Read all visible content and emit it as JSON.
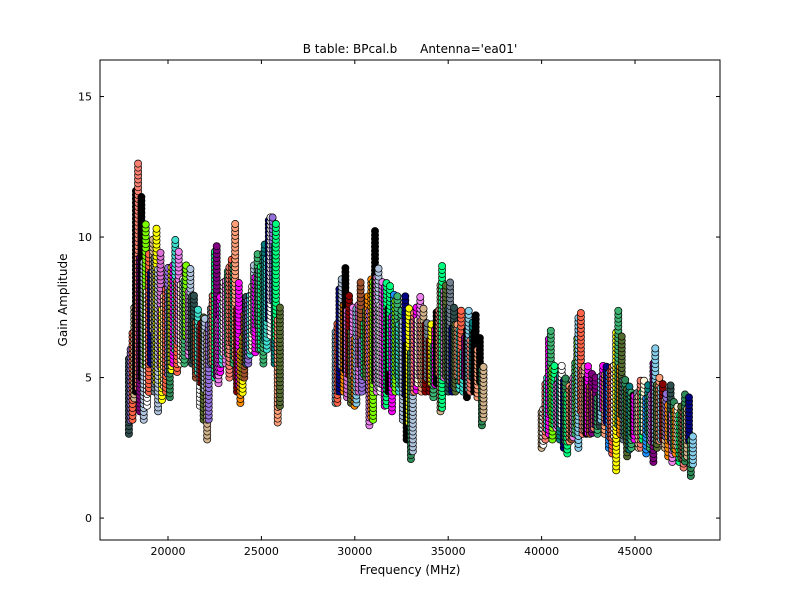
{
  "chart_data": {
    "type": "scatter",
    "title": "B table: BPcal.b      Antenna='ea01'",
    "xlabel": "Frequency (MHz)",
    "ylabel": "Gain Amplitude",
    "xlim": [
      16360,
      49550
    ],
    "ylim": [
      -0.78,
      16.3
    ],
    "xticks": [
      20000,
      25000,
      30000,
      35000,
      40000,
      45000
    ],
    "yticks": [
      0,
      5,
      10,
      15
    ],
    "grid": false,
    "columns_note": "each entry: [frequency MHz, min amplitude, max amplitude]",
    "columns": [
      [
        17900,
        3.0,
        6.0
      ],
      [
        18100,
        3.5,
        7.5
      ],
      [
        18300,
        4.5,
        12.7
      ],
      [
        18500,
        3.8,
        11.5
      ],
      [
        18700,
        3.5,
        10.5
      ],
      [
        18900,
        4.0,
        9.5
      ],
      [
        19100,
        5.5,
        10.0
      ],
      [
        19300,
        4.5,
        10.3
      ],
      [
        19500,
        3.8,
        9.5
      ],
      [
        19700,
        4.2,
        8.0
      ],
      [
        19900,
        4.5,
        9.0
      ],
      [
        20100,
        4.3,
        9.0
      ],
      [
        20300,
        5.5,
        10.0
      ],
      [
        20500,
        5.2,
        9.5
      ],
      [
        20700,
        5.5,
        8.5
      ],
      [
        20900,
        5.5,
        9.0
      ],
      [
        21100,
        5.8,
        9.0
      ],
      [
        21300,
        5.5,
        8.0
      ],
      [
        21500,
        5.0,
        7.5
      ],
      [
        21700,
        4.0,
        7.0
      ],
      [
        21900,
        3.5,
        7.2
      ],
      [
        22100,
        2.8,
        7.0
      ],
      [
        22300,
        5.5,
        8.0
      ],
      [
        22500,
        5.0,
        9.8
      ],
      [
        22700,
        4.8,
        8.0
      ],
      [
        22900,
        5.5,
        8.5
      ],
      [
        23100,
        5.5,
        8.8
      ],
      [
        23300,
        5.0,
        9.2
      ],
      [
        23500,
        5.5,
        10.5
      ],
      [
        23700,
        4.5,
        8.5
      ],
      [
        23900,
        4.1,
        6.5
      ],
      [
        24100,
        5.0,
        8.0
      ],
      [
        24300,
        5.5,
        8.0
      ],
      [
        24500,
        6.0,
        9.0
      ],
      [
        24700,
        5.9,
        9.5
      ],
      [
        24900,
        6.0,
        9.0
      ],
      [
        25100,
        5.5,
        9.8
      ],
      [
        25300,
        6.0,
        10.7
      ],
      [
        25500,
        6.5,
        10.8
      ],
      [
        25700,
        5.5,
        10.5
      ],
      [
        25900,
        3.4,
        7.5
      ],
      [
        29000,
        4.1,
        7.0
      ],
      [
        29200,
        4.5,
        8.5
      ],
      [
        29400,
        4.5,
        8.9
      ],
      [
        29600,
        4.3,
        8.0
      ],
      [
        29800,
        4.1,
        7.5
      ],
      [
        30000,
        4.0,
        7.5
      ],
      [
        30200,
        4.5,
        8.5
      ],
      [
        30400,
        4.5,
        7.0
      ],
      [
        30600,
        5.0,
        8.0
      ],
      [
        30800,
        3.3,
        8.5
      ],
      [
        31000,
        3.5,
        10.3
      ],
      [
        31200,
        4.5,
        9.0
      ],
      [
        31400,
        4.5,
        8.5
      ],
      [
        31600,
        4.0,
        8.5
      ],
      [
        31800,
        4.5,
        8.3
      ],
      [
        32000,
        3.8,
        8.0
      ],
      [
        32200,
        4.5,
        7.9
      ],
      [
        32400,
        4.5,
        7.5
      ],
      [
        32600,
        3.5,
        8.0
      ],
      [
        32800,
        2.8,
        7.5
      ],
      [
        33000,
        2.1,
        7.0
      ],
      [
        33200,
        4.5,
        7.5
      ],
      [
        33400,
        4.8,
        8.0
      ],
      [
        33600,
        4.5,
        7.5
      ],
      [
        33800,
        4.5,
        7.0
      ],
      [
        34000,
        4.5,
        7.0
      ],
      [
        34200,
        4.3,
        6.8
      ],
      [
        34400,
        4.8,
        7.5
      ],
      [
        34600,
        3.8,
        9.1
      ],
      [
        34800,
        5.0,
        8.3
      ],
      [
        35000,
        4.5,
        8.5
      ],
      [
        35200,
        4.5,
        7.5
      ],
      [
        35400,
        4.5,
        7.0
      ],
      [
        35600,
        4.6,
        7.5
      ],
      [
        35800,
        4.5,
        6.5
      ],
      [
        36000,
        4.3,
        7.5
      ],
      [
        36200,
        4.5,
        7.0
      ],
      [
        36400,
        4.5,
        7.3
      ],
      [
        36600,
        4.3,
        6.5
      ],
      [
        36800,
        3.3,
        5.5
      ],
      [
        40000,
        2.5,
        4.0
      ],
      [
        40200,
        2.8,
        5.0
      ],
      [
        40400,
        3.0,
        6.8
      ],
      [
        40600,
        2.8,
        5.5
      ],
      [
        40800,
        3.2,
        5.0
      ],
      [
        41000,
        2.8,
        5.5
      ],
      [
        41200,
        2.5,
        5.0
      ],
      [
        41400,
        2.3,
        4.8
      ],
      [
        41600,
        2.8,
        5.0
      ],
      [
        41800,
        3.0,
        6.5
      ],
      [
        42000,
        2.5,
        7.3
      ],
      [
        42200,
        3.0,
        5.5
      ],
      [
        42400,
        3.0,
        5.5
      ],
      [
        42600,
        3.0,
        5.2
      ],
      [
        42800,
        3.2,
        5.0
      ],
      [
        43000,
        3.0,
        4.5
      ],
      [
        43200,
        3.5,
        5.5
      ],
      [
        43400,
        3.0,
        5.5
      ],
      [
        43600,
        2.5,
        5.3
      ],
      [
        43800,
        2.3,
        5.5
      ],
      [
        44000,
        1.7,
        7.4
      ],
      [
        44200,
        3.0,
        6.5
      ],
      [
        44400,
        2.8,
        5.0
      ],
      [
        44600,
        2.2,
        4.8
      ],
      [
        44800,
        2.5,
        4.5
      ],
      [
        45000,
        2.8,
        4.5
      ],
      [
        45200,
        2.5,
        5.0
      ],
      [
        45400,
        2.8,
        5.0
      ],
      [
        45600,
        2.3,
        4.8
      ],
      [
        45800,
        2.5,
        4.5
      ],
      [
        46000,
        2.0,
        6.1
      ],
      [
        46200,
        2.5,
        5.0
      ],
      [
        46400,
        2.8,
        4.8
      ],
      [
        46600,
        2.5,
        4.5
      ],
      [
        46800,
        2.2,
        4.8
      ],
      [
        47000,
        2.0,
        4.2
      ],
      [
        47200,
        2.3,
        4.0
      ],
      [
        47400,
        2.0,
        4.0
      ],
      [
        47600,
        1.8,
        4.4
      ],
      [
        47800,
        2.2,
        4.3
      ],
      [
        48000,
        1.5,
        3.0
      ]
    ],
    "palette": [
      "#2f4f4f",
      "#708090",
      "#fff8dc",
      "#00ff7f",
      "#008080",
      "#ffa07a",
      "#9370db",
      "#40e0d0",
      "#ffdead",
      "#ff6347",
      "#da70d6",
      "#ffffff",
      "#000080",
      "#ff8c00",
      "#8b0000",
      "#ffff00",
      "#d2b48c",
      "#7cfc00",
      "#3cb371",
      "#556b2f",
      "#800080",
      "#fa8072",
      "#a0522d",
      "#1e90ff",
      "#000000",
      "#2e8b57",
      "#ee82ee",
      "#b0c4de",
      "#ff00ff",
      "#87ceeb"
    ]
  }
}
